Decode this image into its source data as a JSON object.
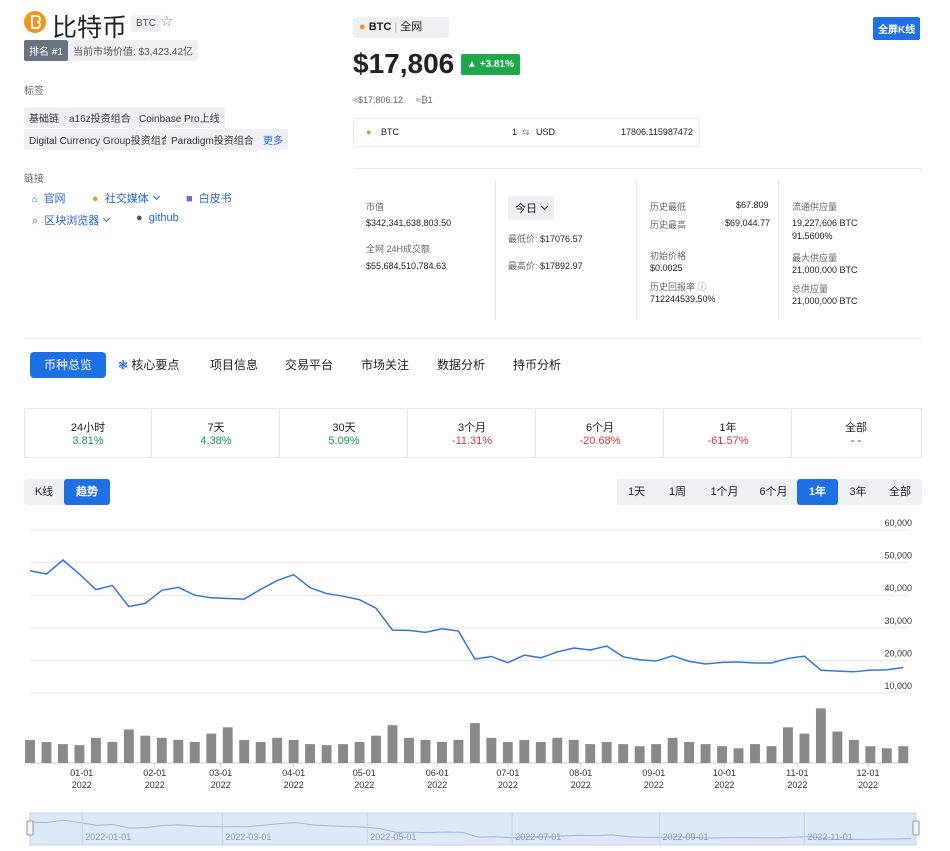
{
  "header": {
    "name": "比特币",
    "symbol": "BTC",
    "rank": "排名 #1",
    "market_value": "当前市场价值: $3,423.42亿"
  },
  "tags": {
    "title": "标签",
    "items": [
      "基础链",
      "a16z投资组合",
      "Coinbase Pro上线",
      "Digital Currency Group投资组合",
      "Paradigm投资组合"
    ],
    "more": "更多"
  },
  "links": {
    "title": "链接",
    "items": [
      "官网",
      "社交媒体",
      "白皮书",
      "区块浏览器",
      "github"
    ]
  },
  "price": {
    "pair": "BTC",
    "exchange": "全网",
    "value": "$17,806",
    "change": "+3.81%",
    "approx_usd": "≈$17,806.12",
    "approx_btc": "≈₿1",
    "converter": {
      "from": "BTC",
      "amount": "1",
      "to": "USD",
      "result": "17806.115987472"
    }
  },
  "fullscreen": "全屏K线",
  "stats": {
    "market_cap_label": "市值",
    "market_cap": "$342,341,638,803.50",
    "volume_label": "全网 24H成交额",
    "volume": "$55,684,510,784.63",
    "range": "今日",
    "low_label": "最低价:",
    "low": "$17076.57",
    "high_label": "最高价:",
    "high": "$17892.97",
    "ath_low_label": "历史最低",
    "ath_low": "$67.809",
    "ath_high_label": "历史最高",
    "ath_high": "$69,044.77",
    "initial_label": "初始价格",
    "initial": "$0.0025",
    "return_label": "历史回报率",
    "return": "712244539.50%",
    "circ_label": "流通供应量",
    "circ": "19,227,606 BTC",
    "circ_pct": "91.5600%",
    "max_label": "最大供应量",
    "max": "21,000,000 BTC",
    "total_label": "总供应量",
    "total": "21,000,000 BTC"
  },
  "tabs": [
    "币种总览",
    "核心要点",
    "项目信息",
    "交易平台",
    "市场关注",
    "数据分析",
    "持币分析"
  ],
  "performance": [
    {
      "period": "24小时",
      "change": "3.81%"
    },
    {
      "period": "7天",
      "change": "4.38%"
    },
    {
      "period": "30天",
      "change": "5.09%"
    },
    {
      "period": "3个月",
      "change": "-11.31%"
    },
    {
      "period": "6个月",
      "change": "-20.68%"
    },
    {
      "period": "1年",
      "change": "-61.57%"
    },
    {
      "period": "全部",
      "change": "- -"
    }
  ],
  "chart_modes": [
    "K线",
    "趋势"
  ],
  "ranges": [
    "1天",
    "1周",
    "1个月",
    "6个月",
    "1年",
    "3年",
    "全部"
  ],
  "chart_data": {
    "type": "line",
    "x": [
      "2021-12-10",
      "2021-12-17",
      "2021-12-24",
      "2021-12-31",
      "2022-01-07",
      "2022-01-14",
      "2022-01-21",
      "2022-01-28",
      "2022-02-04",
      "2022-02-11",
      "2022-02-18",
      "2022-02-25",
      "2022-03-04",
      "2022-03-11",
      "2022-03-18",
      "2022-03-25",
      "2022-04-01",
      "2022-04-08",
      "2022-04-15",
      "2022-04-22",
      "2022-04-29",
      "2022-05-06",
      "2022-05-13",
      "2022-05-20",
      "2022-05-27",
      "2022-06-03",
      "2022-06-10",
      "2022-06-17",
      "2022-06-24",
      "2022-07-01",
      "2022-07-08",
      "2022-07-15",
      "2022-07-22",
      "2022-07-29",
      "2022-08-05",
      "2022-08-12",
      "2022-08-19",
      "2022-08-26",
      "2022-09-02",
      "2022-09-09",
      "2022-09-16",
      "2022-09-23",
      "2022-09-30",
      "2022-10-07",
      "2022-10-14",
      "2022-10-21",
      "2022-10-28",
      "2022-11-04",
      "2022-11-11",
      "2022-11-18",
      "2022-11-25",
      "2022-12-02",
      "2022-12-09",
      "2022-12-16"
    ],
    "series": [
      {
        "color": "#2f74e6",
        "values": [
          47500,
          46500,
          50800,
          46500,
          41700,
          43000,
          36500,
          37500,
          41500,
          42400,
          40000,
          39200,
          39000,
          38800,
          41800,
          44500,
          46300,
          42300,
          40500,
          39700,
          38600,
          36000,
          29300,
          29200,
          28600,
          29700,
          29000,
          20400,
          21200,
          19300,
          21600,
          20800,
          22600,
          23800,
          23200,
          24400,
          21100,
          20200,
          19800,
          21400,
          19700,
          18900,
          19400,
          19500,
          19200,
          19200,
          20600,
          21300,
          17000,
          16700,
          16500,
          17000,
          17100,
          17806
        ]
      },
      {
        "type": "bar",
        "axis": "y2",
        "color": "#8a8a8a",
        "values": [
          22,
          20,
          18,
          17,
          24,
          20,
          32,
          26,
          24,
          22,
          20,
          28,
          34,
          22,
          20,
          24,
          22,
          18,
          17,
          18,
          20,
          26,
          36,
          24,
          22,
          20,
          22,
          38,
          24,
          20,
          22,
          20,
          24,
          22,
          18,
          20,
          18,
          16,
          18,
          24,
          20,
          18,
          16,
          14,
          18,
          16,
          34,
          28,
          52,
          30,
          22,
          16,
          14,
          16
        ]
      }
    ],
    "xlim": [
      "2021-12-10",
      "2022-12-18"
    ],
    "xticks": [
      {
        "value": "2022-01-01",
        "label": "01-01\n2022"
      },
      {
        "value": "2022-02-01",
        "label": "02-01\n2022"
      },
      {
        "value": "2022-03-01",
        "label": "03-01\n2022"
      },
      {
        "value": "2022-04-01",
        "label": "04-01\n2022"
      },
      {
        "value": "2022-05-01",
        "label": "05-01\n2022"
      },
      {
        "value": "2022-06-01",
        "label": "06-01\n2022"
      },
      {
        "value": "2022-07-01",
        "label": "07-01\n2022"
      },
      {
        "value": "2022-08-01",
        "label": "08-01\n2022"
      },
      {
        "value": "2022-09-01",
        "label": "09-01\n2022"
      },
      {
        "value": "2022-10-01",
        "label": "10-01\n2022"
      },
      {
        "value": "2022-11-01",
        "label": "11-01\n2022"
      },
      {
        "value": "2022-12-01",
        "label": "12-01\n2022"
      }
    ],
    "ylim": [
      10000,
      60000
    ],
    "yticks": [
      {
        "value": 10000,
        "label": "10,000"
      },
      {
        "value": 20000,
        "label": "20,000"
      },
      {
        "value": 30000,
        "label": "30,000"
      },
      {
        "value": 40000,
        "label": "40,000"
      },
      {
        "value": 50000,
        "label": "50,000"
      },
      {
        "value": 60000,
        "label": "60,000"
      }
    ],
    "y2lim": [
      0,
      60
    ],
    "grid": true,
    "navigator_ticks": [
      "2022-01-01",
      "2022-03-01",
      "2022-05-01",
      "2022-07-01",
      "2022-09-01",
      "2022-11-01"
    ]
  }
}
